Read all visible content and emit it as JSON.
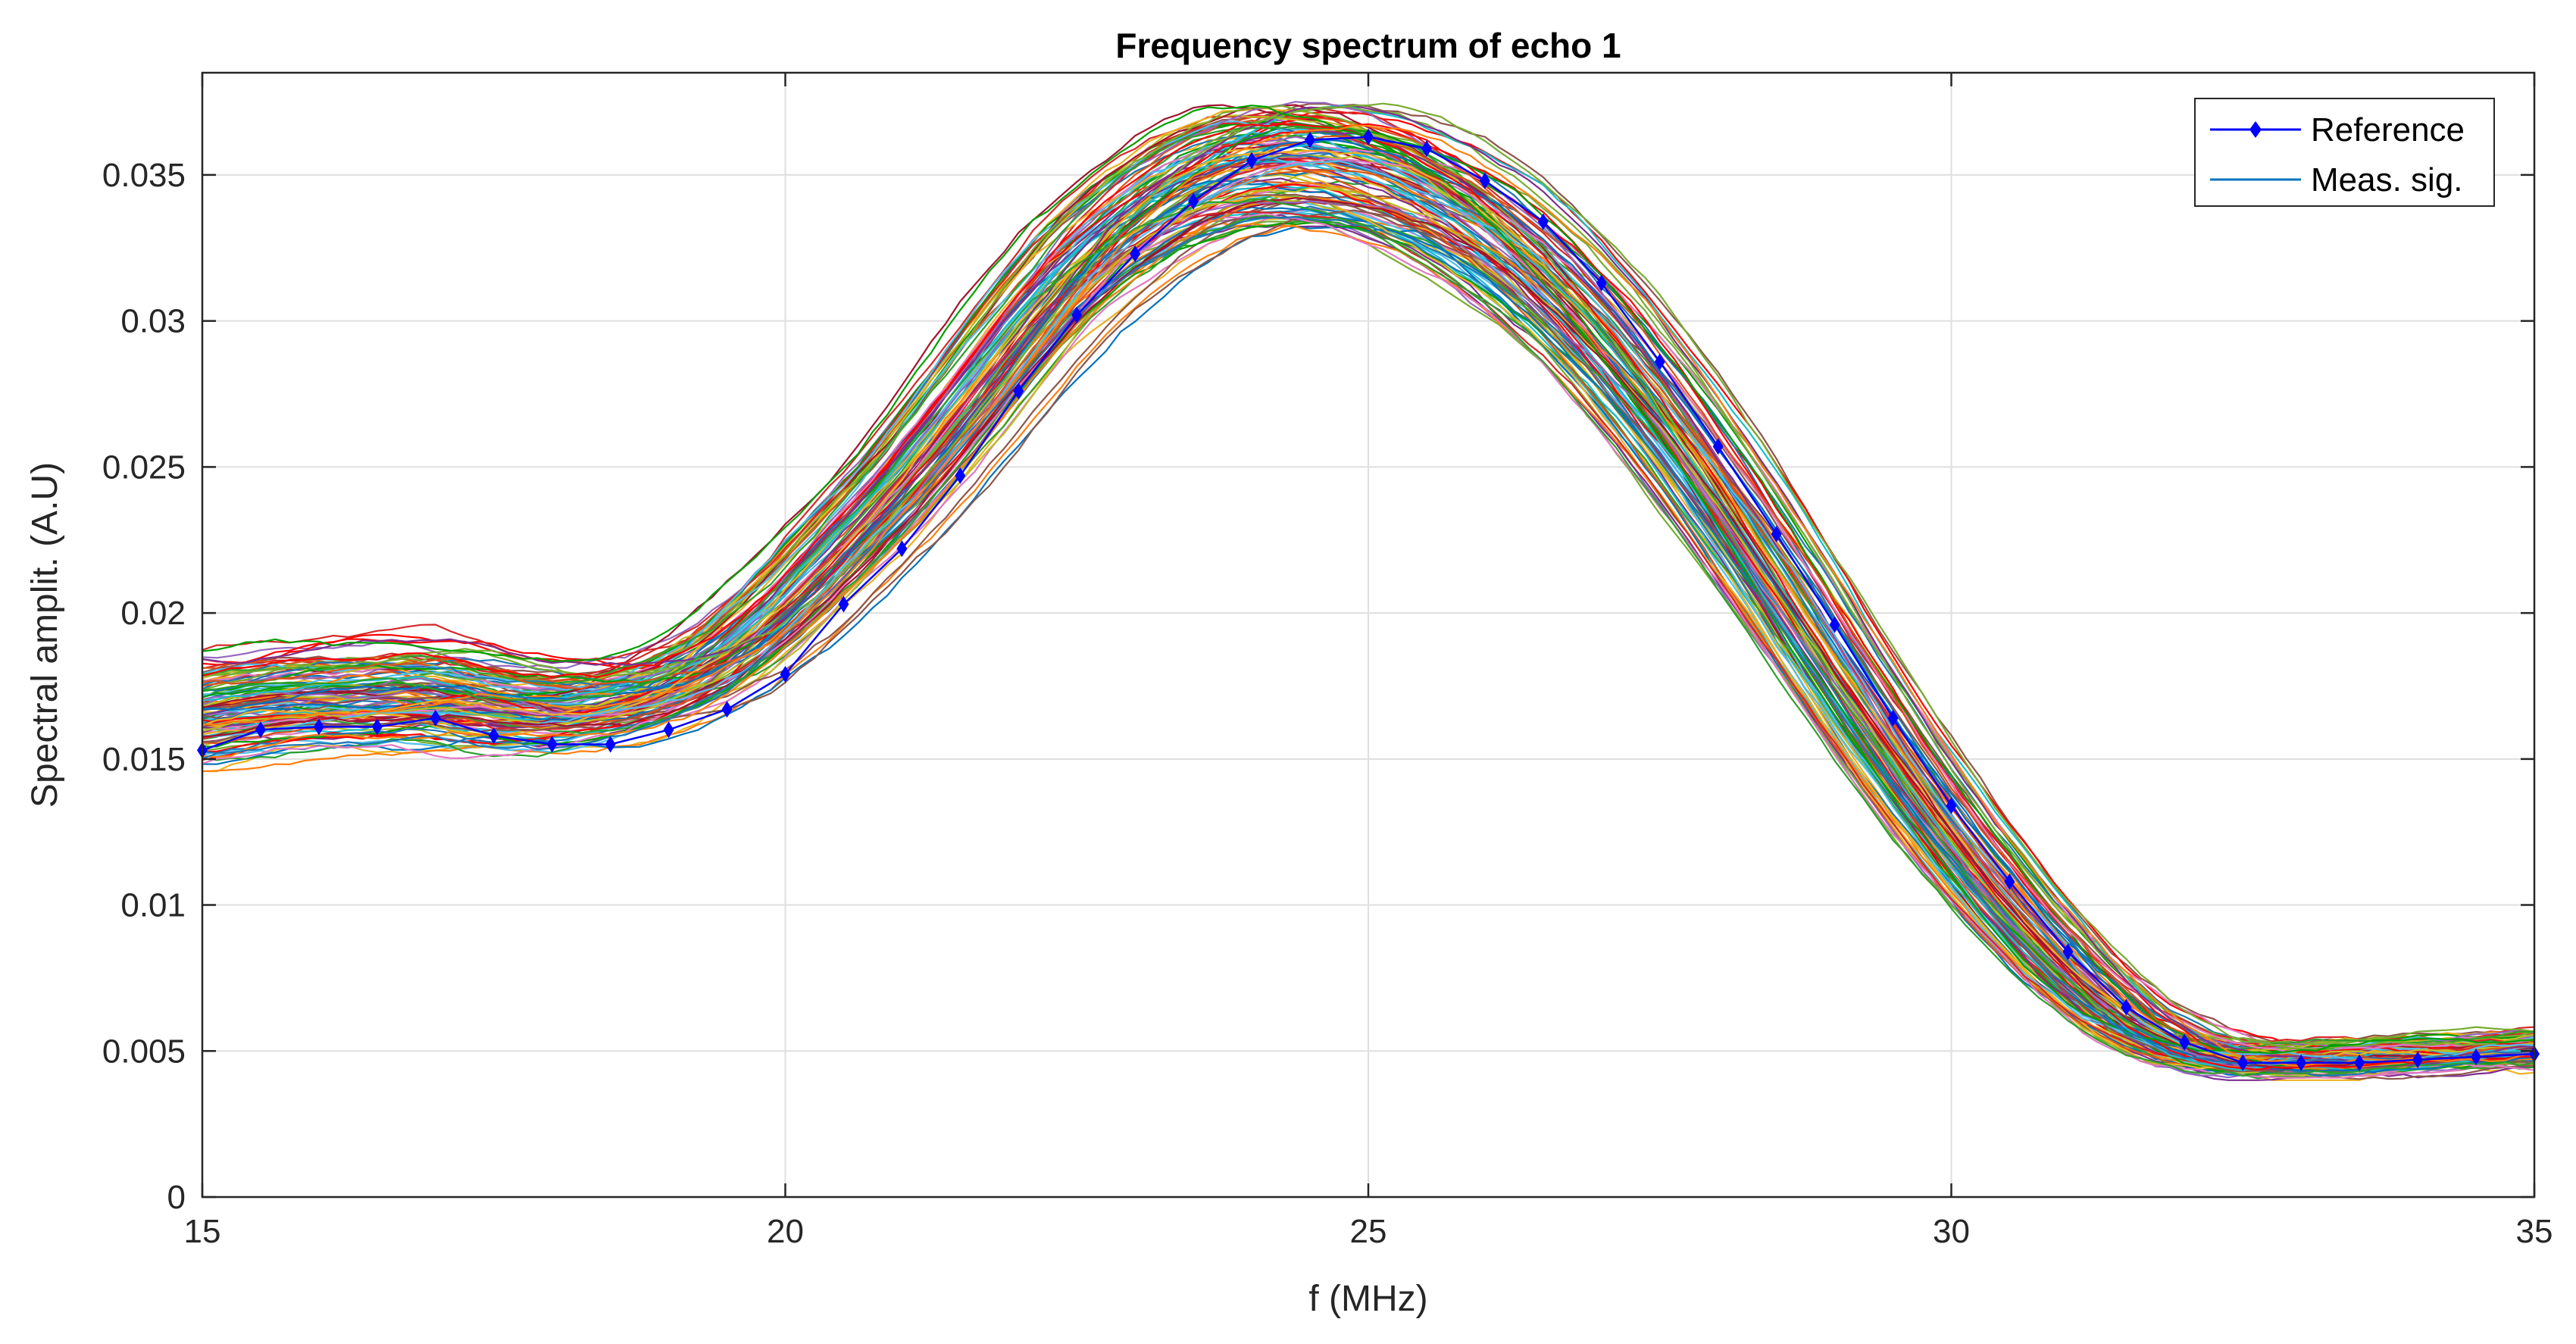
{
  "chart_data": {
    "type": "line",
    "title": "Frequency spectrum of echo 1",
    "xlabel": "f (MHz)",
    "ylabel": "Spectral amplit. (A.U)",
    "xlim": [
      15,
      35
    ],
    "ylim": [
      0,
      0.0385
    ],
    "x_ticks": [
      15,
      20,
      25,
      30,
      35
    ],
    "x_tick_labels": [
      "15",
      "20",
      "25",
      "30",
      "35"
    ],
    "y_ticks": [
      0,
      0.005,
      0.01,
      0.015,
      0.02,
      0.025,
      0.03,
      0.035
    ],
    "y_tick_labels": [
      "0",
      "0.005",
      "0.01",
      "0.015",
      "0.02",
      "0.025",
      "0.03",
      "0.035"
    ],
    "grid": true,
    "legend": {
      "placement": "top-right",
      "entries": [
        "Reference",
        "Meas. sig."
      ]
    },
    "series": [
      {
        "name": "Reference",
        "color": "#0000ff",
        "marker": "diamond",
        "x": [
          15,
          15.5,
          16,
          16.5,
          17,
          17.5,
          18,
          18.5,
          19,
          19.5,
          20,
          20.5,
          21,
          21.5,
          22,
          22.5,
          23,
          23.5,
          24,
          24.5,
          25,
          25.5,
          26,
          26.5,
          27,
          27.5,
          28,
          28.5,
          29,
          29.5,
          30,
          30.5,
          31,
          31.5,
          32,
          32.5,
          33,
          33.5,
          34,
          34.5,
          35
        ],
        "values": [
          0.0153,
          0.016,
          0.0161,
          0.0161,
          0.0164,
          0.0158,
          0.0155,
          0.0155,
          0.016,
          0.0167,
          0.0179,
          0.0203,
          0.0222,
          0.0247,
          0.0276,
          0.0302,
          0.0323,
          0.0341,
          0.0355,
          0.0362,
          0.0363,
          0.0359,
          0.0348,
          0.0334,
          0.0313,
          0.0286,
          0.0257,
          0.0227,
          0.0196,
          0.0164,
          0.0134,
          0.0108,
          0.0084,
          0.0065,
          0.0053,
          0.0046,
          0.0046,
          0.0046,
          0.0047,
          0.0048,
          0.0049
        ]
      },
      {
        "name": "Meas. sig.",
        "note": "ensemble of many measured spectra around a mean curve",
        "x": [
          15,
          15.5,
          16,
          16.5,
          17,
          17.5,
          18,
          18.5,
          19,
          19.5,
          20,
          20.5,
          21,
          21.5,
          22,
          22.5,
          23,
          23.5,
          24,
          24.5,
          25,
          25.5,
          26,
          26.5,
          27,
          27.5,
          28,
          28.5,
          29,
          29.5,
          30,
          30.5,
          31,
          31.5,
          32,
          32.5,
          33,
          33.5,
          34,
          34.5,
          35
        ],
        "mean_values": [
          0.0168,
          0.0172,
          0.0174,
          0.0174,
          0.0176,
          0.0172,
          0.017,
          0.0171,
          0.0176,
          0.0186,
          0.0203,
          0.0224,
          0.0245,
          0.027,
          0.0296,
          0.032,
          0.0337,
          0.035,
          0.0357,
          0.0358,
          0.0355,
          0.0347,
          0.0335,
          0.0318,
          0.0297,
          0.0272,
          0.0244,
          0.0214,
          0.0183,
          0.0153,
          0.0125,
          0.01,
          0.0078,
          0.0061,
          0.0051,
          0.0047,
          0.0047,
          0.0048,
          0.0049,
          0.005,
          0.0051
        ],
        "count": 120,
        "colors": [
          "#0072bd",
          "#d95319",
          "#edb120",
          "#7e2f8e",
          "#77ac30",
          "#4dbeee",
          "#a2142f",
          "#ff0000",
          "#00a000",
          "#1f77b4",
          "#ff7f0e",
          "#2ca02c",
          "#d62728",
          "#9467bd",
          "#8c564b",
          "#e377c2",
          "#17becf",
          "#bcbd22"
        ]
      }
    ]
  }
}
